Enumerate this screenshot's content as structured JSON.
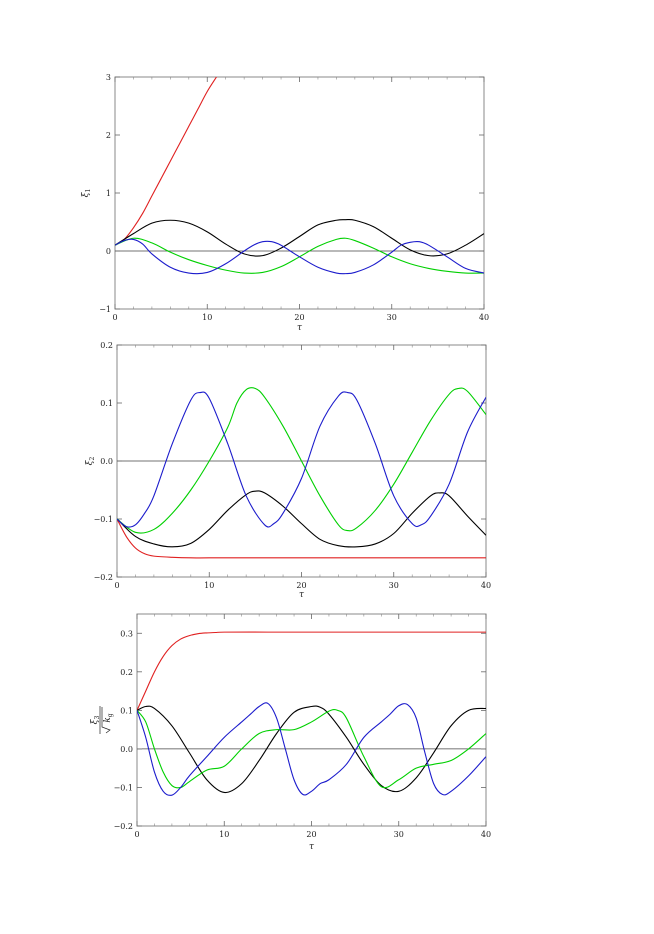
{
  "chart_data": [
    {
      "type": "line",
      "xlabel": "τ",
      "ylabel": "ξ₁",
      "ylabel_main": "ξ",
      "ylabel_sub": "1",
      "xlim": [
        0,
        40
      ],
      "ylim": [
        -1,
        3
      ],
      "xticks": [
        "0",
        "10",
        "20",
        "30",
        "40"
      ],
      "yticks": [
        "−1",
        "0",
        "1",
        "2",
        "3"
      ],
      "xtick_values": [
        0,
        10,
        20,
        30,
        40
      ],
      "ytick_values": [
        -1,
        0,
        1,
        2,
        3
      ],
      "grid": false,
      "zero_line": true,
      "series": [
        {
          "color": "#e02020",
          "x": [
            0,
            1,
            2,
            3,
            4,
            5,
            6,
            7,
            8,
            9,
            10,
            11
          ],
          "y": [
            0.1,
            0.2,
            0.4,
            0.65,
            0.95,
            1.25,
            1.55,
            1.85,
            2.15,
            2.45,
            2.75,
            3.0
          ]
        },
        {
          "color": "#000000",
          "x": [
            0,
            2,
            4,
            6,
            8,
            10,
            12,
            14,
            16,
            18,
            20,
            22,
            24,
            25,
            26,
            28,
            30,
            32,
            34,
            36,
            38,
            40
          ],
          "y": [
            0.1,
            0.3,
            0.48,
            0.53,
            0.48,
            0.33,
            0.12,
            -0.05,
            -0.08,
            0.05,
            0.25,
            0.45,
            0.53,
            0.54,
            0.53,
            0.42,
            0.22,
            0.02,
            -0.08,
            -0.05,
            0.1,
            0.3
          ]
        },
        {
          "color": "#00d000",
          "x": [
            0,
            2,
            4,
            6,
            8,
            10,
            12,
            14,
            16,
            18,
            20,
            22,
            24,
            25,
            26,
            28,
            30,
            32,
            34,
            36,
            38,
            40
          ],
          "y": [
            0.1,
            0.22,
            0.14,
            -0.02,
            -0.15,
            -0.25,
            -0.33,
            -0.38,
            -0.37,
            -0.27,
            -0.1,
            0.08,
            0.2,
            0.22,
            0.18,
            0.05,
            -0.1,
            -0.22,
            -0.3,
            -0.35,
            -0.38,
            -0.38
          ]
        },
        {
          "color": "#1c1ccc",
          "x": [
            0,
            1,
            2,
            3,
            4,
            6,
            8,
            10,
            12,
            14,
            15,
            16,
            17,
            18,
            19,
            20,
            22,
            24,
            25,
            26,
            28,
            30,
            31,
            32,
            33,
            34,
            36,
            38,
            40
          ],
          "y": [
            0.1,
            0.18,
            0.2,
            0.12,
            -0.05,
            -0.28,
            -0.38,
            -0.37,
            -0.22,
            0.0,
            0.1,
            0.16,
            0.16,
            0.1,
            0.0,
            -0.1,
            -0.28,
            -0.38,
            -0.39,
            -0.37,
            -0.24,
            -0.02,
            0.1,
            0.15,
            0.16,
            0.1,
            -0.1,
            -0.3,
            -0.38
          ]
        }
      ]
    },
    {
      "type": "line",
      "xlabel": "τ",
      "ylabel": "ξ₂",
      "ylabel_main": "ξ",
      "ylabel_sub": "2",
      "xlim": [
        0,
        40
      ],
      "ylim": [
        -0.2,
        0.2
      ],
      "xticks": [
        "0",
        "10",
        "20",
        "30",
        "40"
      ],
      "yticks": [
        "−0.2",
        "−0.1",
        "0.0",
        "0.1",
        "0.2"
      ],
      "xtick_values": [
        0,
        10,
        20,
        30,
        40
      ],
      "ytick_values": [
        -0.2,
        -0.1,
        0.0,
        0.1,
        0.2
      ],
      "grid": false,
      "zero_line": true,
      "series": [
        {
          "color": "#e02020",
          "x": [
            0,
            1,
            2,
            3,
            4,
            6,
            8,
            10,
            15,
            20,
            30,
            40
          ],
          "y": [
            -0.1,
            -0.13,
            -0.15,
            -0.16,
            -0.164,
            -0.166,
            -0.167,
            -0.167,
            -0.167,
            -0.167,
            -0.167,
            -0.167
          ]
        },
        {
          "color": "#000000",
          "x": [
            0,
            2,
            4,
            6,
            8,
            10,
            12,
            14,
            15,
            16,
            18,
            20,
            22,
            24,
            26,
            28,
            30,
            32,
            34,
            35,
            36,
            38,
            40
          ],
          "y": [
            -0.1,
            -0.13,
            -0.143,
            -0.148,
            -0.142,
            -0.118,
            -0.085,
            -0.058,
            -0.052,
            -0.055,
            -0.078,
            -0.108,
            -0.135,
            -0.146,
            -0.148,
            -0.143,
            -0.125,
            -0.09,
            -0.06,
            -0.055,
            -0.06,
            -0.095,
            -0.128
          ]
        },
        {
          "color": "#00d000",
          "x": [
            0,
            2,
            4,
            6,
            8,
            10,
            12,
            13,
            14,
            15,
            16,
            18,
            20,
            22,
            24,
            25,
            26,
            28,
            30,
            32,
            34,
            36,
            37,
            38,
            40
          ],
          "y": [
            -0.1,
            -0.123,
            -0.118,
            -0.09,
            -0.05,
            0.0,
            0.058,
            0.1,
            0.123,
            0.125,
            0.11,
            0.06,
            0.0,
            -0.06,
            -0.11,
            -0.12,
            -0.115,
            -0.085,
            -0.04,
            0.015,
            0.07,
            0.115,
            0.125,
            0.12,
            0.08
          ]
        },
        {
          "color": "#1c1ccc",
          "x": [
            0,
            1,
            2,
            3,
            4,
            6,
            8,
            9,
            10,
            12,
            14,
            16,
            17,
            18,
            20,
            22,
            24,
            25,
            26,
            28,
            30,
            32,
            33,
            34,
            36,
            38,
            40
          ],
          "y": [
            -0.1,
            -0.113,
            -0.11,
            -0.09,
            -0.06,
            0.03,
            0.105,
            0.118,
            0.108,
            0.03,
            -0.06,
            -0.11,
            -0.108,
            -0.09,
            -0.03,
            0.06,
            0.112,
            0.118,
            0.105,
            0.03,
            -0.06,
            -0.108,
            -0.11,
            -0.095,
            -0.04,
            0.05,
            0.11
          ]
        }
      ]
    },
    {
      "type": "line",
      "xlabel": "τ",
      "ylabel": "ξ₃ / √k_g",
      "ylabel_main": "ξ",
      "ylabel_sub": "3",
      "ylabel_sqrt": "k",
      "ylabel_sqrt_sub": "g",
      "xlim": [
        0,
        40
      ],
      "ylim": [
        -0.2,
        0.35
      ],
      "xticks": [
        "0",
        "10",
        "20",
        "30",
        "40"
      ],
      "yticks": [
        "−0.2",
        "−0.1",
        "0.0",
        "0.1",
        "0.2",
        "0.3"
      ],
      "xtick_values": [
        0,
        10,
        20,
        30,
        40
      ],
      "ytick_values": [
        -0.2,
        -0.1,
        0.0,
        0.1,
        0.2,
        0.3
      ],
      "grid": false,
      "zero_line": true,
      "series": [
        {
          "color": "#e02020",
          "x": [
            0,
            1,
            2,
            3,
            4,
            5,
            6,
            7,
            8,
            9,
            10,
            15,
            20,
            30,
            40
          ],
          "y": [
            0.1,
            0.15,
            0.2,
            0.24,
            0.268,
            0.285,
            0.294,
            0.299,
            0.301,
            0.302,
            0.303,
            0.303,
            0.303,
            0.303,
            0.303
          ]
        },
        {
          "color": "#000000",
          "x": [
            0,
            1,
            2,
            4,
            6,
            8,
            10,
            12,
            14,
            16,
            18,
            20,
            21,
            22,
            24,
            26,
            28,
            30,
            32,
            34,
            36,
            38,
            40
          ],
          "y": [
            0.1,
            0.11,
            0.105,
            0.06,
            -0.01,
            -0.08,
            -0.113,
            -0.09,
            -0.03,
            0.04,
            0.095,
            0.11,
            0.108,
            0.09,
            0.03,
            -0.04,
            -0.095,
            -0.11,
            -0.075,
            -0.01,
            0.06,
            0.1,
            0.105
          ]
        },
        {
          "color": "#00d000",
          "x": [
            0,
            1,
            2,
            3,
            4,
            5,
            6,
            8,
            10,
            12,
            14,
            16,
            18,
            20,
            22,
            23,
            24,
            26,
            28,
            30,
            32,
            34,
            36,
            38,
            40
          ],
          "y": [
            0.1,
            0.07,
            0.0,
            -0.06,
            -0.095,
            -0.1,
            -0.085,
            -0.055,
            -0.045,
            0.0,
            0.04,
            0.05,
            0.05,
            0.07,
            0.098,
            0.1,
            0.08,
            -0.02,
            -0.098,
            -0.08,
            -0.05,
            -0.04,
            -0.03,
            0.0,
            0.04
          ]
        },
        {
          "color": "#1c1ccc",
          "x": [
            0,
            1,
            2,
            3,
            4,
            5,
            6,
            8,
            10,
            12,
            13,
            14,
            15,
            16,
            17,
            18,
            19,
            20,
            21,
            22,
            24,
            26,
            28,
            29,
            30,
            31,
            32,
            33,
            34,
            35,
            36,
            38,
            40
          ],
          "y": [
            0.1,
            0.03,
            -0.06,
            -0.11,
            -0.12,
            -0.1,
            -0.07,
            -0.02,
            0.03,
            0.07,
            0.09,
            0.11,
            0.118,
            0.08,
            0.0,
            -0.08,
            -0.118,
            -0.11,
            -0.09,
            -0.08,
            -0.04,
            0.03,
            0.07,
            0.09,
            0.112,
            0.115,
            0.08,
            -0.01,
            -0.09,
            -0.118,
            -0.11,
            -0.07,
            -0.02
          ]
        }
      ]
    }
  ]
}
